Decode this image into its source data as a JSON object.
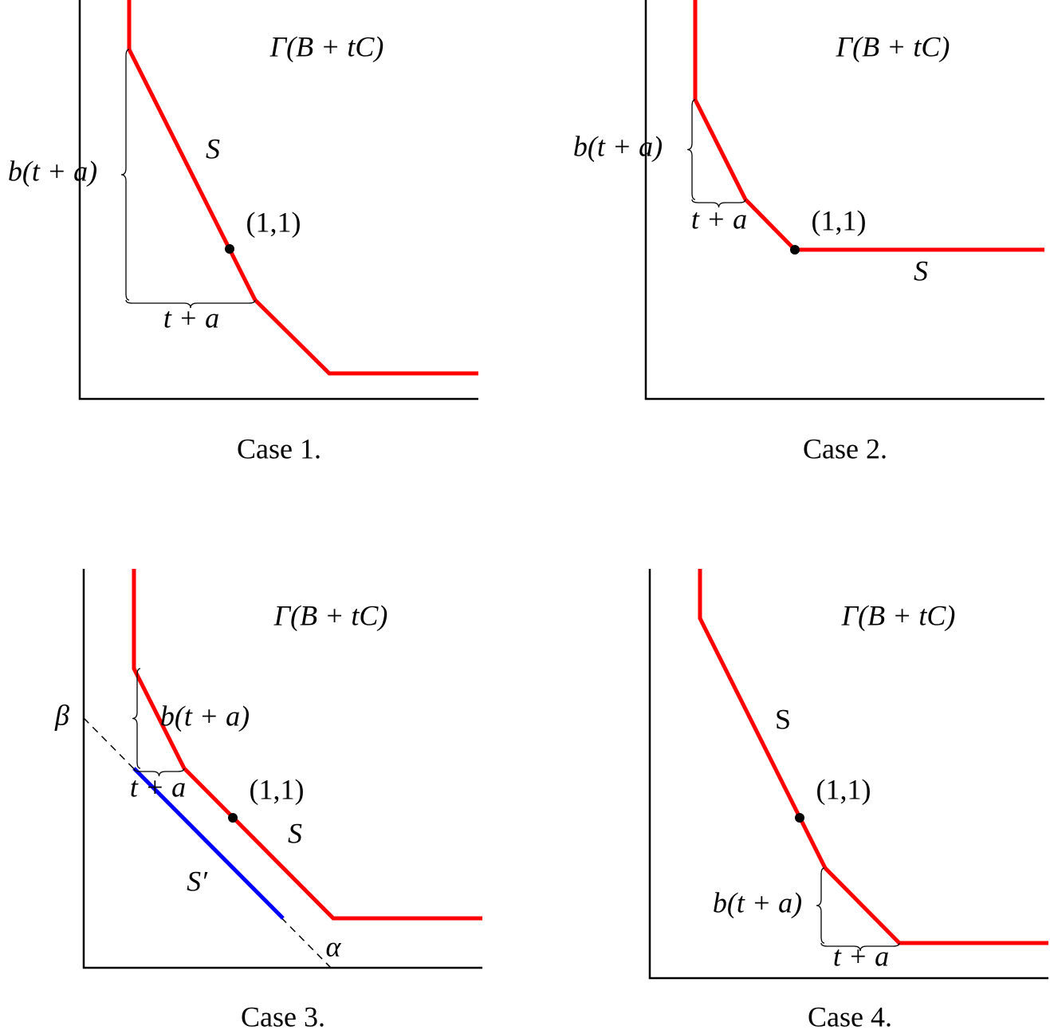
{
  "panels": [
    {
      "title": "Γ(B + tC)",
      "curve_label": "S",
      "point_label": "(1,1)",
      "vertical_brace_label": "b(t + a)",
      "horizontal_brace_label": "t + a",
      "caption": "Case 1."
    },
    {
      "title": "Γ(B + tC)",
      "curve_label": "S",
      "point_label": "(1,1)",
      "vertical_brace_label": "b(t + a)",
      "horizontal_brace_label": "t + a",
      "caption": "Case 2."
    },
    {
      "title": "Γ(B + tC)",
      "curve_label": "S",
      "shifted_curve_label": "S′",
      "point_label": "(1,1)",
      "vertical_brace_label": "b(t + a)",
      "horizontal_brace_label": "t + a",
      "y_intercept_label": "β",
      "x_intercept_label": "α",
      "caption": "Case 3."
    },
    {
      "title": "Γ(B + tC)",
      "curve_label": "S",
      "point_label": "(1,1)",
      "vertical_brace_label": "b(t + a)",
      "horizontal_brace_label": "t + a",
      "caption": "Case 4."
    }
  ]
}
